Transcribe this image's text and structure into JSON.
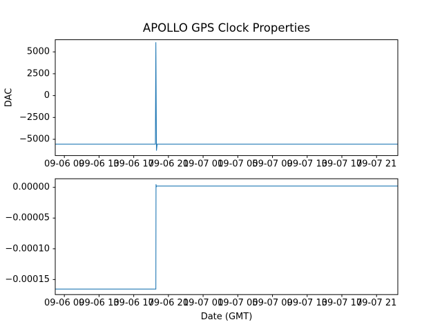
{
  "figure": {
    "title": "APOLLO GPS Clock Properties",
    "xlabel": "Date (GMT)",
    "colors": {
      "line": "#1f77b4",
      "axis": "#000000",
      "background": "#ffffff"
    },
    "xlim": [
      -1.05,
      38.45
    ],
    "x_ticks": [
      {
        "hours": 0,
        "label": "09-06 09"
      },
      {
        "hours": 4,
        "label": "09-06 13"
      },
      {
        "hours": 8,
        "label": "09-06 17"
      },
      {
        "hours": 12,
        "label": "09-06 21"
      },
      {
        "hours": 16,
        "label": "09-07 01"
      },
      {
        "hours": 20,
        "label": "09-07 05"
      },
      {
        "hours": 24,
        "label": "09-07 09"
      },
      {
        "hours": 28,
        "label": "09-07 13"
      },
      {
        "hours": 32,
        "label": "09-07 17"
      },
      {
        "hours": 36,
        "label": "09-07 21"
      }
    ]
  },
  "chart_data": [
    {
      "type": "line",
      "name": "dac",
      "ylabel": "DAC",
      "yticks": [
        5000,
        2500,
        0,
        -2500,
        -5000
      ],
      "ytick_labels": [
        "5000",
        "2500",
        "0",
        "−2500",
        "−5000"
      ],
      "ylim": [
        -6860,
        6390
      ],
      "grid": false,
      "legend": null,
      "series": [
        {
          "name": "dac-line",
          "x": [
            -1.05,
            10.5,
            10.55,
            10.62,
            10.7,
            38.45
          ],
          "y": [
            -5556,
            -5556,
            6100,
            -6300,
            -5556,
            -5556
          ]
        }
      ]
    },
    {
      "type": "line",
      "name": "clock-offset",
      "xlabel": "Date (GMT)",
      "ylabel": "",
      "yticks": [
        0,
        -5e-05,
        -0.0001,
        -0.00015
      ],
      "ytick_labels": [
        "0.00000",
        "−0.00005",
        "−0.00010",
        "−0.00015"
      ],
      "ylim": [
        -0.0001745,
        1.4e-05
      ],
      "grid": false,
      "legend": null,
      "series": [
        {
          "name": "offset-line",
          "x": [
            -1.05,
            10.55,
            10.57,
            10.6,
            10.65,
            38.45
          ],
          "y": [
            -0.0001655,
            -0.0001655,
            5e-06,
            8e-07,
            2.1e-06,
            2.1e-06
          ]
        }
      ]
    }
  ]
}
